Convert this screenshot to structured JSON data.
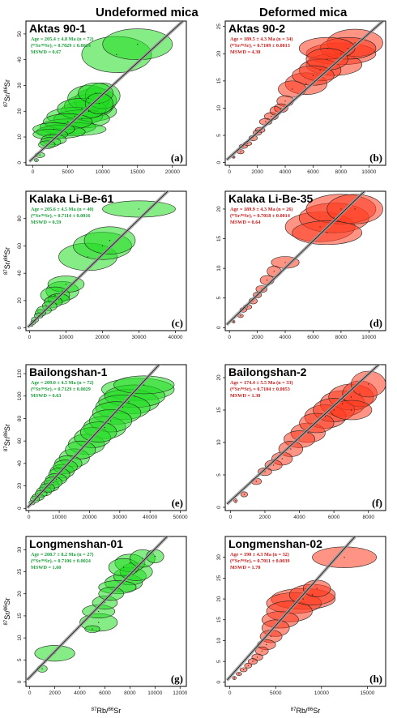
{
  "headers": {
    "left": "Undeformed mica",
    "right": "Deformed mica"
  },
  "colors": {
    "undeformed": "#22dd22",
    "deformed": "#ff3b1f",
    "stat_green": "#1a9e3a",
    "stat_red": "#cc1a1a"
  },
  "axis_labels": {
    "ylabel_pre": "87",
    "ylabel_mid": "Sr/",
    "ylabel_sup2": "86",
    "ylabel_post": "Sr",
    "xlabel_pre": "87",
    "xlabel_mid": "Rb/",
    "xlabel_sup2": "86",
    "xlabel_post": "Sr"
  },
  "chart_data": [
    {
      "type": "scatter",
      "panel": "(a)",
      "title": "Aktas 90-1",
      "group": "undeformed",
      "stats": [
        "Age = 205.4 ± 4.8 Ma (n = 72)",
        "(⁸⁷Sr/⁸⁶Sr)ᵢ = 0.7029 ± 0.0024",
        "MSWD = 0.67"
      ],
      "xlim": [
        -1000,
        22000
      ],
      "ylim": [
        -1,
        55
      ],
      "xticks": [
        0,
        5000,
        10000,
        15000,
        20000
      ],
      "yticks": [
        0,
        10,
        20,
        30,
        40,
        50
      ],
      "line": [
        [
          -500,
          0.5
        ],
        [
          21500,
          55
        ]
      ],
      "points": [
        [
          500,
          1,
          300,
          0.6
        ],
        [
          1000,
          3,
          700,
          1
        ],
        [
          2000,
          7,
          1200,
          1.5
        ],
        [
          2500,
          8,
          1500,
          1.8
        ],
        [
          3000,
          9,
          1800,
          2
        ],
        [
          2500,
          11,
          2500,
          2
        ],
        [
          3000,
          13,
          3000,
          2.5
        ],
        [
          4000,
          12,
          3500,
          2.5
        ],
        [
          5000,
          14,
          4000,
          3
        ],
        [
          6000,
          13,
          4500,
          2.5
        ],
        [
          5000,
          16,
          3500,
          3
        ],
        [
          6000,
          18,
          4000,
          3.5
        ],
        [
          7000,
          17,
          4000,
          3.5
        ],
        [
          8000,
          20,
          4000,
          4
        ],
        [
          7000,
          21,
          3500,
          4
        ],
        [
          8000,
          22,
          3500,
          4.5
        ],
        [
          9000,
          24,
          3000,
          5
        ],
        [
          8000,
          25,
          3000,
          5
        ],
        [
          9000,
          27,
          2500,
          4
        ],
        [
          10000,
          26,
          2500,
          5
        ],
        [
          9500,
          23,
          2000,
          4
        ],
        [
          12000,
          42,
          5000,
          7
        ],
        [
          15000,
          46,
          5000,
          6
        ]
      ]
    },
    {
      "type": "scatter",
      "panel": "(b)",
      "title": "Aktas 90-2",
      "group": "deformed",
      "stats": [
        "Age = 189.5 ± 4.3 Ma (n = 34)",
        "(⁸⁷Sr/⁸⁶Sr)ᵢ = 0.7109 ± 0.0013",
        "MSWD = 4.30"
      ],
      "xlim": [
        -300,
        11200
      ],
      "ylim": [
        -0.5,
        26
      ],
      "xticks": [
        0,
        2000,
        4000,
        6000,
        8000,
        10000
      ],
      "yticks": [
        0,
        5,
        10,
        15,
        20,
        25
      ],
      "line": [
        [
          -200,
          0.5
        ],
        [
          11000,
          26
        ]
      ],
      "points": [
        [
          300,
          1,
          100,
          0.2
        ],
        [
          800,
          2,
          250,
          0.4
        ],
        [
          1000,
          3,
          300,
          0.4
        ],
        [
          1300,
          3.5,
          300,
          0.4
        ],
        [
          1700,
          4.5,
          300,
          0.5
        ],
        [
          2000,
          5.5,
          300,
          0.5
        ],
        [
          2200,
          6,
          350,
          0.5
        ],
        [
          2600,
          7.5,
          450,
          0.6
        ],
        [
          3000,
          8.5,
          500,
          0.7
        ],
        [
          3300,
          9.5,
          400,
          0.8
        ],
        [
          3700,
          10,
          500,
          0.8
        ],
        [
          4000,
          11.3,
          600,
          1
        ],
        [
          4500,
          13.5,
          1000,
          1.5
        ],
        [
          5500,
          14.5,
          1500,
          2
        ],
        [
          6000,
          16,
          1500,
          1.8
        ],
        [
          6500,
          17,
          1500,
          2
        ],
        [
          7000,
          19,
          1500,
          2
        ],
        [
          7500,
          18,
          2000,
          2
        ],
        [
          8000,
          20,
          2500,
          2
        ],
        [
          8500,
          21,
          2000,
          2
        ],
        [
          9000,
          22,
          2000,
          2.5
        ],
        [
          7000,
          21,
          2000,
          2
        ]
      ]
    },
    {
      "type": "scatter",
      "panel": "(c)",
      "title": "Kalaka Li-Be-61",
      "group": "undeformed",
      "stats": [
        "Age = 205.6 ± 4.5 Ma (n = 40)",
        "(⁸⁷Sr/⁸⁶Sr)ᵢ = 0.7114 ± 0.0016",
        "MSWD = 0.59"
      ],
      "xlim": [
        -1000,
        43000
      ],
      "ylim": [
        -2,
        100
      ],
      "xticks": [
        0,
        10000,
        20000,
        30000,
        40000
      ],
      "yticks": [
        0,
        20,
        40,
        60,
        80
      ],
      "line": [
        [
          -500,
          0.5
        ],
        [
          41000,
          108
        ]
      ],
      "points": [
        [
          500,
          2,
          500,
          1
        ],
        [
          1000,
          4,
          700,
          1.5
        ],
        [
          1500,
          6,
          1000,
          2
        ],
        [
          2500,
          9,
          1200,
          2
        ],
        [
          3000,
          11,
          1500,
          2.5
        ],
        [
          4000,
          13,
          2000,
          3
        ],
        [
          5500,
          16,
          2000,
          3.5
        ],
        [
          6500,
          19,
          2500,
          4
        ],
        [
          8000,
          21,
          3000,
          4
        ],
        [
          7000,
          24,
          4000,
          6
        ],
        [
          9000,
          27,
          4500,
          7
        ],
        [
          10000,
          32,
          5000,
          6
        ],
        [
          16000,
          52,
          8000,
          10
        ],
        [
          20000,
          60,
          8000,
          10
        ],
        [
          22000,
          64,
          7000,
          10
        ],
        [
          30000,
          87,
          10000,
          6
        ]
      ]
    },
    {
      "type": "scatter",
      "panel": "(d)",
      "title": "Kalaka Li-Be-35",
      "group": "deformed",
      "stats": [
        "Age = 189.9 ± 4.3 Ma (n = 26)",
        "(⁸⁷Sr/⁸⁶Sr)ᵢ = 0.7018 ± 0.0014",
        "MSWD = 0.64"
      ],
      "xlim": [
        -300,
        11200
      ],
      "ylim": [
        -0.5,
        23
      ],
      "xticks": [
        0,
        2000,
        4000,
        6000,
        8000,
        10000
      ],
      "yticks": [
        0,
        5,
        10,
        15,
        20
      ],
      "line": [
        [
          -200,
          0.5
        ],
        [
          11000,
          26
        ]
      ],
      "points": [
        [
          300,
          1,
          100,
          0.2
        ],
        [
          800,
          2,
          200,
          0.3
        ],
        [
          1000,
          3,
          250,
          0.4
        ],
        [
          1300,
          3.5,
          300,
          0.4
        ],
        [
          1700,
          4.5,
          300,
          0.5
        ],
        [
          2000,
          5.5,
          300,
          0.5
        ],
        [
          2300,
          6.5,
          400,
          0.6
        ],
        [
          2700,
          8,
          500,
          0.8
        ],
        [
          3200,
          9.5,
          500,
          0.9
        ],
        [
          4000,
          11,
          1000,
          1
        ],
        [
          6500,
          17,
          2500,
          2.5
        ],
        [
          7500,
          18.5,
          2500,
          2.5
        ],
        [
          8000,
          20,
          2500,
          2.5
        ],
        [
          9000,
          20,
          2000,
          2.5
        ],
        [
          7000,
          16,
          2500,
          2
        ]
      ]
    },
    {
      "type": "scatter",
      "panel": "(e)",
      "title": "Bailongshan-1",
      "group": "undeformed",
      "stats": [
        "Age = 209.0 ± 4.5 Ma (n = 72)",
        "(⁸⁷Sr/⁸⁶Sr)ᵢ = 0.7129 ± 0.0029",
        "MSWD = 0.63"
      ],
      "xlim": [
        -1000,
        52000
      ],
      "ylim": [
        -2,
        128
      ],
      "xticks": [
        0,
        10000,
        20000,
        30000,
        40000,
        50000
      ],
      "yticks": [
        0,
        20,
        40,
        60,
        80,
        100,
        120
      ],
      "line": [
        [
          -500,
          0.5
        ],
        [
          50500,
          150
        ]
      ],
      "points": [
        [
          1000,
          5,
          1000,
          2
        ],
        [
          2000,
          8,
          1500,
          3
        ],
        [
          3000,
          10,
          2000,
          3
        ],
        [
          4000,
          13,
          2000,
          3
        ],
        [
          5000,
          15,
          2500,
          4
        ],
        [
          6000,
          18,
          2500,
          4
        ],
        [
          7000,
          20,
          3000,
          5
        ],
        [
          8000,
          23,
          3000,
          5
        ],
        [
          9000,
          26,
          3500,
          5
        ],
        [
          10000,
          30,
          3500,
          6
        ],
        [
          11000,
          33,
          4000,
          6
        ],
        [
          12000,
          37,
          4000,
          6
        ],
        [
          13000,
          40,
          4500,
          7
        ],
        [
          15000,
          45,
          5000,
          8
        ],
        [
          17000,
          52,
          5000,
          8
        ],
        [
          19000,
          57,
          6000,
          9
        ],
        [
          21000,
          63,
          6000,
          9
        ],
        [
          23000,
          68,
          6000,
          9
        ],
        [
          25000,
          72,
          7000,
          10
        ],
        [
          27000,
          78,
          7000,
          10
        ],
        [
          29000,
          85,
          8000,
          10
        ],
        [
          31000,
          90,
          9000,
          11
        ],
        [
          33000,
          95,
          10000,
          11
        ],
        [
          35000,
          100,
          10000,
          10
        ],
        [
          36000,
          106,
          12000,
          10
        ],
        [
          38000,
          110,
          10000,
          8
        ]
      ]
    },
    {
      "type": "scatter",
      "panel": "(f)",
      "title": "Bailongshan-2",
      "group": "deformed",
      "stats": [
        "Age = 174.4 ± 5.5 Ma (n = 33)",
        "(⁸⁷Sr/⁸⁶Sr)ᵢ = 0.7104 ± 0.0053",
        "MSWD = 1.30"
      ],
      "xlim": [
        -300,
        9000
      ],
      "ylim": [
        -0.5,
        22
      ],
      "xticks": [
        0,
        2000,
        4000,
        6000,
        8000
      ],
      "yticks": [
        0,
        5,
        10,
        15,
        20
      ],
      "line": [
        [
          -200,
          0.5
        ],
        [
          8800,
          22.5
        ]
      ],
      "points": [
        [
          300,
          1,
          100,
          0.3
        ],
        [
          800,
          2,
          200,
          0.4
        ],
        [
          1500,
          4,
          300,
          0.5
        ],
        [
          2000,
          5.5,
          400,
          0.6
        ],
        [
          2500,
          6.5,
          500,
          0.8
        ],
        [
          3000,
          7.5,
          600,
          1
        ],
        [
          3500,
          9,
          700,
          1.2
        ],
        [
          4000,
          10.5,
          900,
          1.3
        ],
        [
          4500,
          11.5,
          1000,
          1.5
        ],
        [
          5000,
          13,
          1000,
          1.5
        ],
        [
          5500,
          14,
          1200,
          1.8
        ],
        [
          6000,
          15,
          1200,
          1.8
        ],
        [
          6500,
          16,
          1300,
          2
        ],
        [
          7000,
          17,
          1300,
          2
        ],
        [
          7500,
          17.5,
          1000,
          2
        ],
        [
          8000,
          19,
          1000,
          2
        ],
        [
          7000,
          15,
          1200,
          1.5
        ]
      ]
    },
    {
      "type": "scatter",
      "panel": "(g)",
      "title": "Longmenshan-01",
      "group": "undeformed",
      "stats": [
        "Age = 208.7 ± 8.2 Ma (n = 27)",
        "(⁸⁷Sr/⁸⁶Sr)ᵢ = 0.7106 ± 0.0024",
        "MSWD = 1.60"
      ],
      "xlim": [
        -300,
        12500
      ],
      "ylim": [
        -1,
        33
      ],
      "xticks": [
        0,
        2000,
        4000,
        6000,
        8000,
        10000,
        12000
      ],
      "yticks": [
        0,
        5,
        10,
        15,
        20,
        25,
        30
      ],
      "line": [
        [
          -200,
          0.5
        ],
        [
          12000,
          36
        ]
      ],
      "points": [
        [
          1000,
          3,
          400,
          0.8
        ],
        [
          2000,
          6.5,
          1600,
          1.8
        ],
        [
          5000,
          12,
          600,
          0.8
        ],
        [
          5500,
          13.5,
          1500,
          2
        ],
        [
          5500,
          16,
          1300,
          1.5
        ],
        [
          6000,
          18,
          1000,
          1.5
        ],
        [
          6500,
          20,
          1000,
          1.5
        ],
        [
          7000,
          21.5,
          1500,
          1.5
        ],
        [
          7500,
          22.5,
          1500,
          2
        ],
        [
          8000,
          24,
          1300,
          2
        ],
        [
          8500,
          25,
          1300,
          2
        ],
        [
          8000,
          27,
          1200,
          2
        ],
        [
          9000,
          28,
          1000,
          2
        ],
        [
          10000,
          28.5,
          700,
          1.5
        ],
        [
          7500,
          26,
          1200,
          2
        ]
      ]
    },
    {
      "type": "scatter",
      "panel": "(h)",
      "title": "Longmenshan-02",
      "group": "deformed",
      "stats": [
        "Age = 190 ± 4.3 Ma (n = 32)",
        "(⁸⁷Sr/⁸⁶Sr)ᵢ = 0.7011 ± 0.0039",
        "MSWD = 1.70"
      ],
      "xlim": [
        -500,
        17000
      ],
      "ylim": [
        -1,
        35
      ],
      "xticks": [
        0,
        5000,
        10000,
        15000
      ],
      "yticks": [
        0,
        5,
        10,
        15,
        20,
        25,
        30
      ],
      "line": [
        [
          -300,
          0.5
        ],
        [
          16500,
          42
        ]
      ],
      "points": [
        [
          500,
          1,
          200,
          0.4
        ],
        [
          1000,
          2,
          300,
          0.4
        ],
        [
          1500,
          3,
          400,
          0.5
        ],
        [
          2000,
          4,
          400,
          0.6
        ],
        [
          2500,
          5,
          500,
          0.7
        ],
        [
          3000,
          6,
          600,
          0.8
        ],
        [
          3500,
          7.5,
          700,
          1
        ],
        [
          4000,
          9,
          1000,
          1.2
        ],
        [
          4500,
          11,
          1200,
          1.5
        ],
        [
          5000,
          13,
          1500,
          2
        ],
        [
          5500,
          15,
          2000,
          2
        ],
        [
          6500,
          17,
          2500,
          2.5
        ],
        [
          7000,
          19,
          3000,
          2.5
        ],
        [
          8000,
          20,
          3500,
          2.5
        ],
        [
          9000,
          21,
          2500,
          2.5
        ],
        [
          9500,
          22.5,
          1500,
          2
        ],
        [
          12500,
          30,
          3500,
          2.5
        ]
      ]
    }
  ]
}
